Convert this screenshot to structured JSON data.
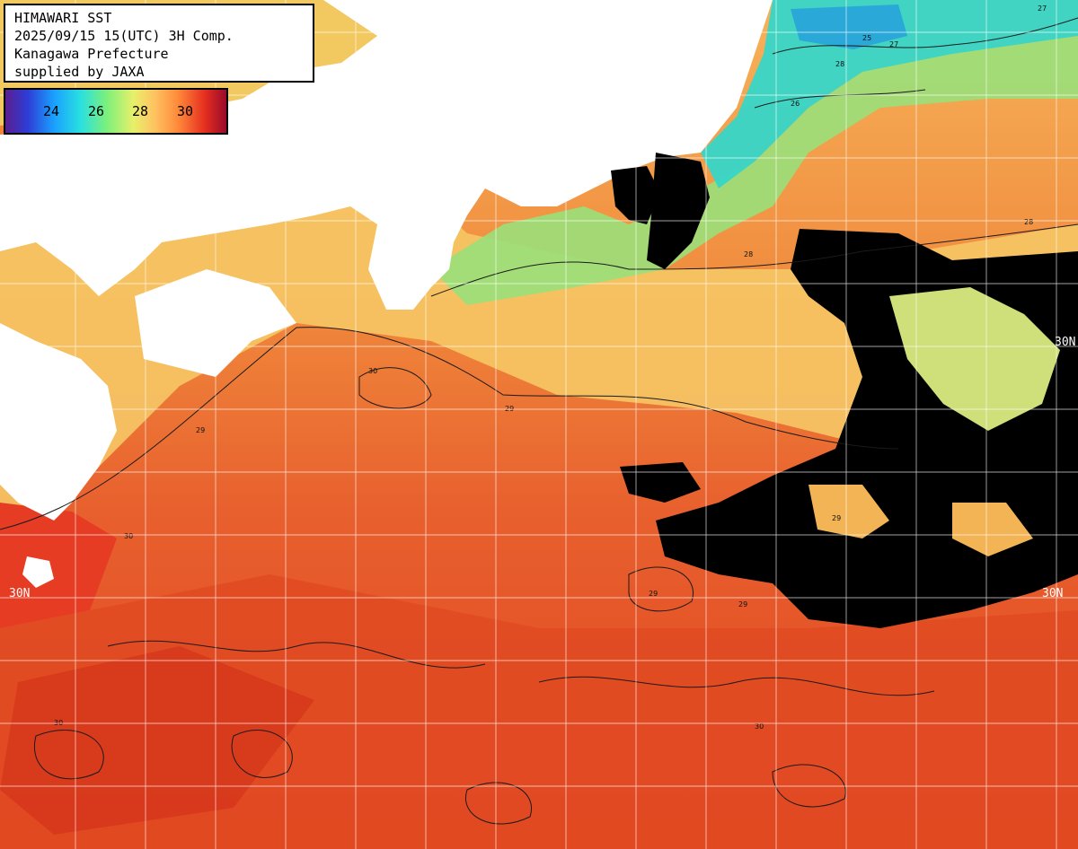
{
  "map": {
    "title_lines": [
      "HIMAWARI SST",
      "2025/09/15 15(UTC) 3H Comp.",
      "Kanagawa Prefecture",
      "supplied by JAXA"
    ],
    "legend": {
      "ticks": [
        "24",
        "26",
        "28",
        "30"
      ],
      "unit_range": [
        23,
        31
      ]
    },
    "lat_labels": [
      "30N",
      "30N",
      "30N"
    ],
    "contour_labels": [
      "27",
      "28",
      "28",
      "27",
      "26",
      "25",
      "28",
      "29",
      "29",
      "29",
      "30",
      "30",
      "29",
      "29",
      "30",
      "30"
    ],
    "colors": {
      "land": "#ffffff",
      "cloud": "#000000",
      "warm_sea": "#e8542a",
      "hot_sea": "#d8351f",
      "coastal_cool": "#7fe08a",
      "bay_cool": "#2fd0d0",
      "mid_sea": "#f4a34a",
      "grid": "#ffffff"
    }
  }
}
